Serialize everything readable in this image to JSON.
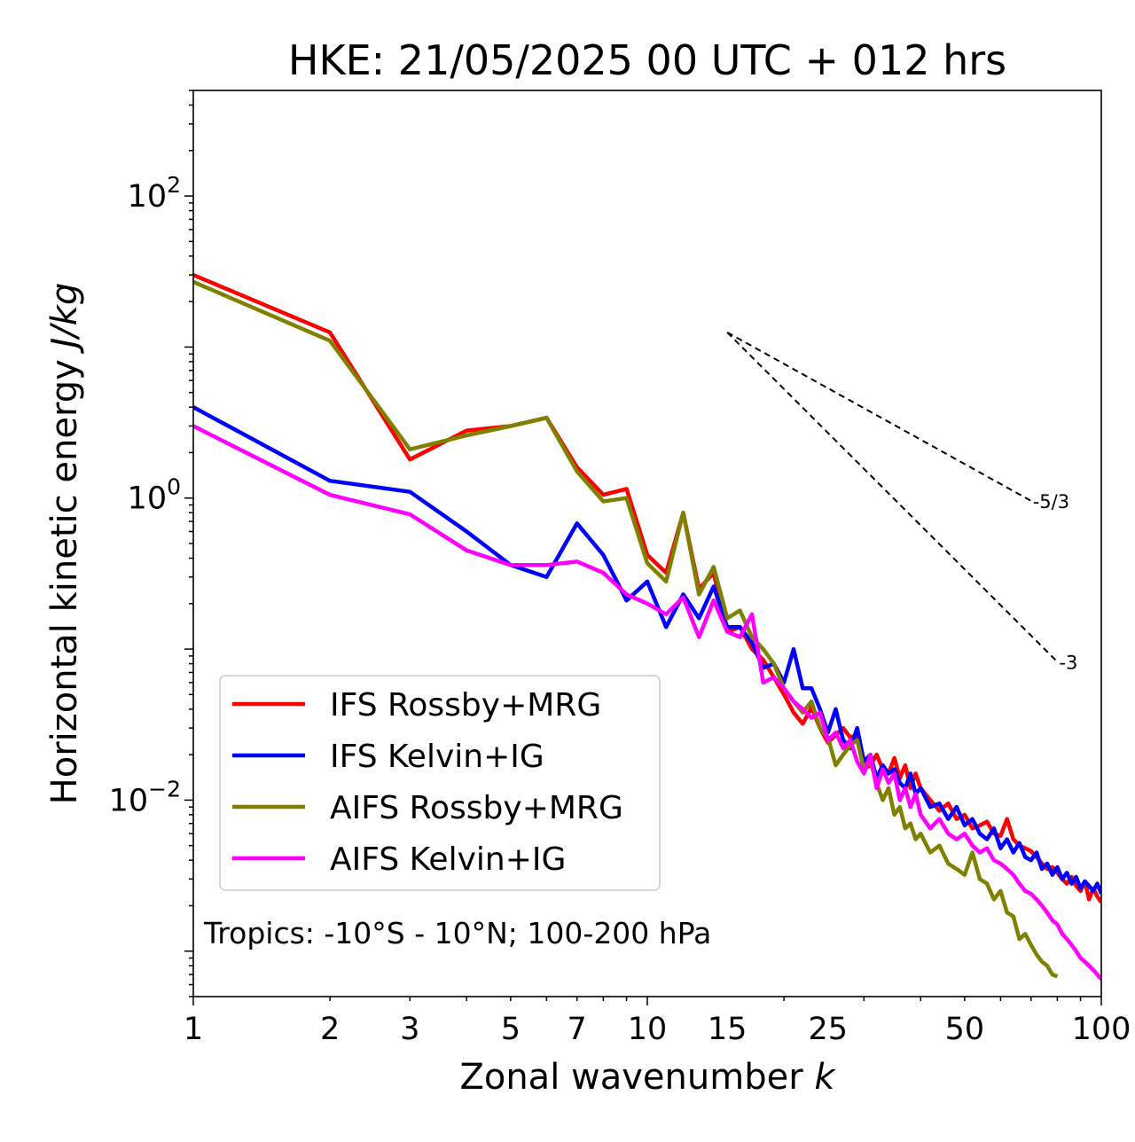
{
  "chart_data": {
    "type": "line",
    "title": "HKE: 21/05/2025 00 UTC + 012 hrs",
    "xlabel": "Zonal wavenumber",
    "xlabel_var": "k",
    "ylabel": "Horizontal kinetic energy",
    "ylabel_units": "J/kg",
    "xscale": "log",
    "yscale": "log",
    "xlim": [
      1,
      100
    ],
    "ylim": [
      0.0005,
      500
    ],
    "xticks": [
      1,
      2,
      3,
      5,
      7,
      10,
      15,
      25,
      50,
      100
    ],
    "xtick_labels": [
      "1",
      "2",
      "3",
      "5",
      "7",
      "10",
      "15",
      "25",
      "50",
      "100"
    ],
    "yticks": [
      0.01,
      1,
      100
    ],
    "ytick_labels": [
      {
        "base": "10",
        "exp": "−2"
      },
      {
        "base": "10",
        "exp": "0"
      },
      {
        "base": "10",
        "exp": "2"
      }
    ],
    "grid": false,
    "legend_position": "lower-left",
    "annotation": "Tropics: -10°S - 10°N; 100-200 hPa",
    "reference_lines": [
      {
        "label": "-5/3",
        "slope": -1.6667,
        "x_start": 15,
        "y_start": 12.5,
        "x_end": 70
      },
      {
        "label": "-3",
        "slope": -3,
        "x_start": 15,
        "y_start": 12.5,
        "x_end": 80
      }
    ],
    "series": [
      {
        "name": "IFS Rossby+MRG",
        "color": "#ff0000",
        "x": [
          1,
          2,
          3,
          4,
          5,
          6,
          7,
          8,
          9,
          10,
          11,
          12,
          13,
          14,
          15,
          16,
          17,
          18,
          19,
          20,
          21,
          22,
          23,
          24,
          25,
          26,
          27,
          28,
          29,
          30,
          31,
          32,
          33,
          34,
          35,
          36,
          37,
          38,
          39,
          40,
          42,
          44,
          46,
          48,
          50,
          52,
          54,
          56,
          58,
          60,
          62,
          64,
          66,
          68,
          70,
          72,
          74,
          76,
          78,
          80,
          82,
          84,
          86,
          88,
          90,
          92,
          94,
          96,
          98,
          100
        ],
        "y": [
          30,
          12.5,
          1.8,
          2.8,
          3.0,
          3.4,
          1.6,
          1.05,
          1.15,
          0.42,
          0.32,
          0.8,
          0.25,
          0.32,
          0.13,
          0.14,
          0.1,
          0.085,
          0.065,
          0.05,
          0.038,
          0.032,
          0.041,
          0.03,
          0.024,
          0.027,
          0.03,
          0.026,
          0.027,
          0.016,
          0.017,
          0.02,
          0.016,
          0.015,
          0.019,
          0.014,
          0.017,
          0.012,
          0.015,
          0.012,
          0.01,
          0.0085,
          0.0095,
          0.0075,
          0.008,
          0.0065,
          0.0068,
          0.0072,
          0.006,
          0.0058,
          0.0075,
          0.0055,
          0.005,
          0.0048,
          0.0046,
          0.0042,
          0.0038,
          0.0035,
          0.0036,
          0.0033,
          0.003,
          0.0028,
          0.0031,
          0.0027,
          0.0025,
          0.0029,
          0.0022,
          0.0026,
          0.0023,
          0.0021
        ]
      },
      {
        "name": "IFS Kelvin+IG",
        "color": "#0000ff",
        "x": [
          1,
          2,
          3,
          4,
          5,
          6,
          7,
          8,
          9,
          10,
          11,
          12,
          13,
          14,
          15,
          16,
          17,
          18,
          19,
          20,
          21,
          22,
          23,
          24,
          25,
          26,
          27,
          28,
          29,
          30,
          31,
          32,
          33,
          34,
          35,
          36,
          37,
          38,
          39,
          40,
          42,
          44,
          46,
          48,
          50,
          52,
          54,
          56,
          58,
          60,
          62,
          64,
          66,
          68,
          70,
          72,
          74,
          76,
          78,
          80,
          82,
          84,
          86,
          88,
          90,
          92,
          94,
          96,
          98,
          100
        ],
        "y": [
          4,
          1.3,
          1.1,
          0.6,
          0.36,
          0.3,
          0.68,
          0.42,
          0.21,
          0.28,
          0.14,
          0.23,
          0.16,
          0.26,
          0.14,
          0.14,
          0.11,
          0.075,
          0.08,
          0.06,
          0.1,
          0.055,
          0.055,
          0.04,
          0.028,
          0.04,
          0.025,
          0.022,
          0.03,
          0.018,
          0.02,
          0.014,
          0.017,
          0.015,
          0.016,
          0.013,
          0.012,
          0.015,
          0.011,
          0.012,
          0.009,
          0.0095,
          0.0075,
          0.009,
          0.0068,
          0.0075,
          0.006,
          0.0055,
          0.0065,
          0.0048,
          0.0055,
          0.0045,
          0.0052,
          0.0042,
          0.004,
          0.0045,
          0.0035,
          0.0038,
          0.0032,
          0.0036,
          0.003,
          0.0033,
          0.0028,
          0.0031,
          0.0026,
          0.0029,
          0.0027,
          0.0025,
          0.0028,
          0.0024
        ]
      },
      {
        "name": "AIFS Rossby+MRG",
        "color": "#808000",
        "x": [
          1,
          2,
          3,
          4,
          5,
          6,
          7,
          8,
          9,
          10,
          11,
          12,
          13,
          14,
          15,
          16,
          17,
          18,
          19,
          20,
          21,
          22,
          23,
          24,
          25,
          26,
          27,
          28,
          29,
          30,
          31,
          32,
          33,
          34,
          35,
          36,
          37,
          38,
          39,
          40,
          42,
          44,
          46,
          48,
          50,
          52,
          54,
          56,
          58,
          60,
          62,
          64,
          66,
          68,
          70,
          72,
          74,
          76,
          78,
          80
        ],
        "y": [
          27,
          11,
          2.1,
          2.6,
          3.0,
          3.4,
          1.5,
          0.95,
          1.0,
          0.37,
          0.28,
          0.8,
          0.23,
          0.35,
          0.16,
          0.18,
          0.12,
          0.1,
          0.08,
          0.055,
          0.045,
          0.038,
          0.045,
          0.03,
          0.026,
          0.017,
          0.02,
          0.023,
          0.025,
          0.016,
          0.018,
          0.013,
          0.01,
          0.012,
          0.008,
          0.009,
          0.0065,
          0.007,
          0.0055,
          0.006,
          0.0045,
          0.005,
          0.0038,
          0.0035,
          0.0032,
          0.0045,
          0.003,
          0.0028,
          0.0022,
          0.0025,
          0.0018,
          0.0017,
          0.0012,
          0.0013,
          0.0011,
          0.00095,
          0.00085,
          0.0008,
          0.0007,
          0.00068
        ]
      },
      {
        "name": "AIFS Kelvin+IG",
        "color": "#ff00ff",
        "x": [
          1,
          2,
          3,
          4,
          5,
          6,
          7,
          8,
          9,
          10,
          11,
          12,
          13,
          14,
          15,
          16,
          17,
          18,
          19,
          20,
          21,
          22,
          23,
          24,
          25,
          26,
          27,
          28,
          29,
          30,
          31,
          32,
          33,
          34,
          35,
          36,
          37,
          38,
          39,
          40,
          42,
          44,
          46,
          48,
          50,
          52,
          54,
          56,
          58,
          60,
          62,
          64,
          66,
          68,
          70,
          72,
          74,
          76,
          78,
          80,
          82,
          84,
          86,
          88,
          90,
          92,
          94,
          96,
          98,
          100
        ],
        "y": [
          3.0,
          1.05,
          0.78,
          0.45,
          0.36,
          0.36,
          0.38,
          0.32,
          0.23,
          0.2,
          0.17,
          0.22,
          0.12,
          0.21,
          0.13,
          0.12,
          0.17,
          0.06,
          0.065,
          0.055,
          0.045,
          0.04,
          0.035,
          0.038,
          0.025,
          0.028,
          0.022,
          0.025,
          0.018,
          0.015,
          0.02,
          0.012,
          0.016,
          0.013,
          0.015,
          0.01,
          0.012,
          0.009,
          0.011,
          0.008,
          0.0065,
          0.0075,
          0.006,
          0.0055,
          0.006,
          0.005,
          0.0045,
          0.0048,
          0.004,
          0.0038,
          0.0035,
          0.0032,
          0.0028,
          0.0025,
          0.0024,
          0.0022,
          0.002,
          0.0018,
          0.0016,
          0.0015,
          0.0013,
          0.0012,
          0.0011,
          0.001,
          0.0009,
          0.00085,
          0.0008,
          0.00075,
          0.0007,
          0.00065
        ]
      }
    ]
  }
}
